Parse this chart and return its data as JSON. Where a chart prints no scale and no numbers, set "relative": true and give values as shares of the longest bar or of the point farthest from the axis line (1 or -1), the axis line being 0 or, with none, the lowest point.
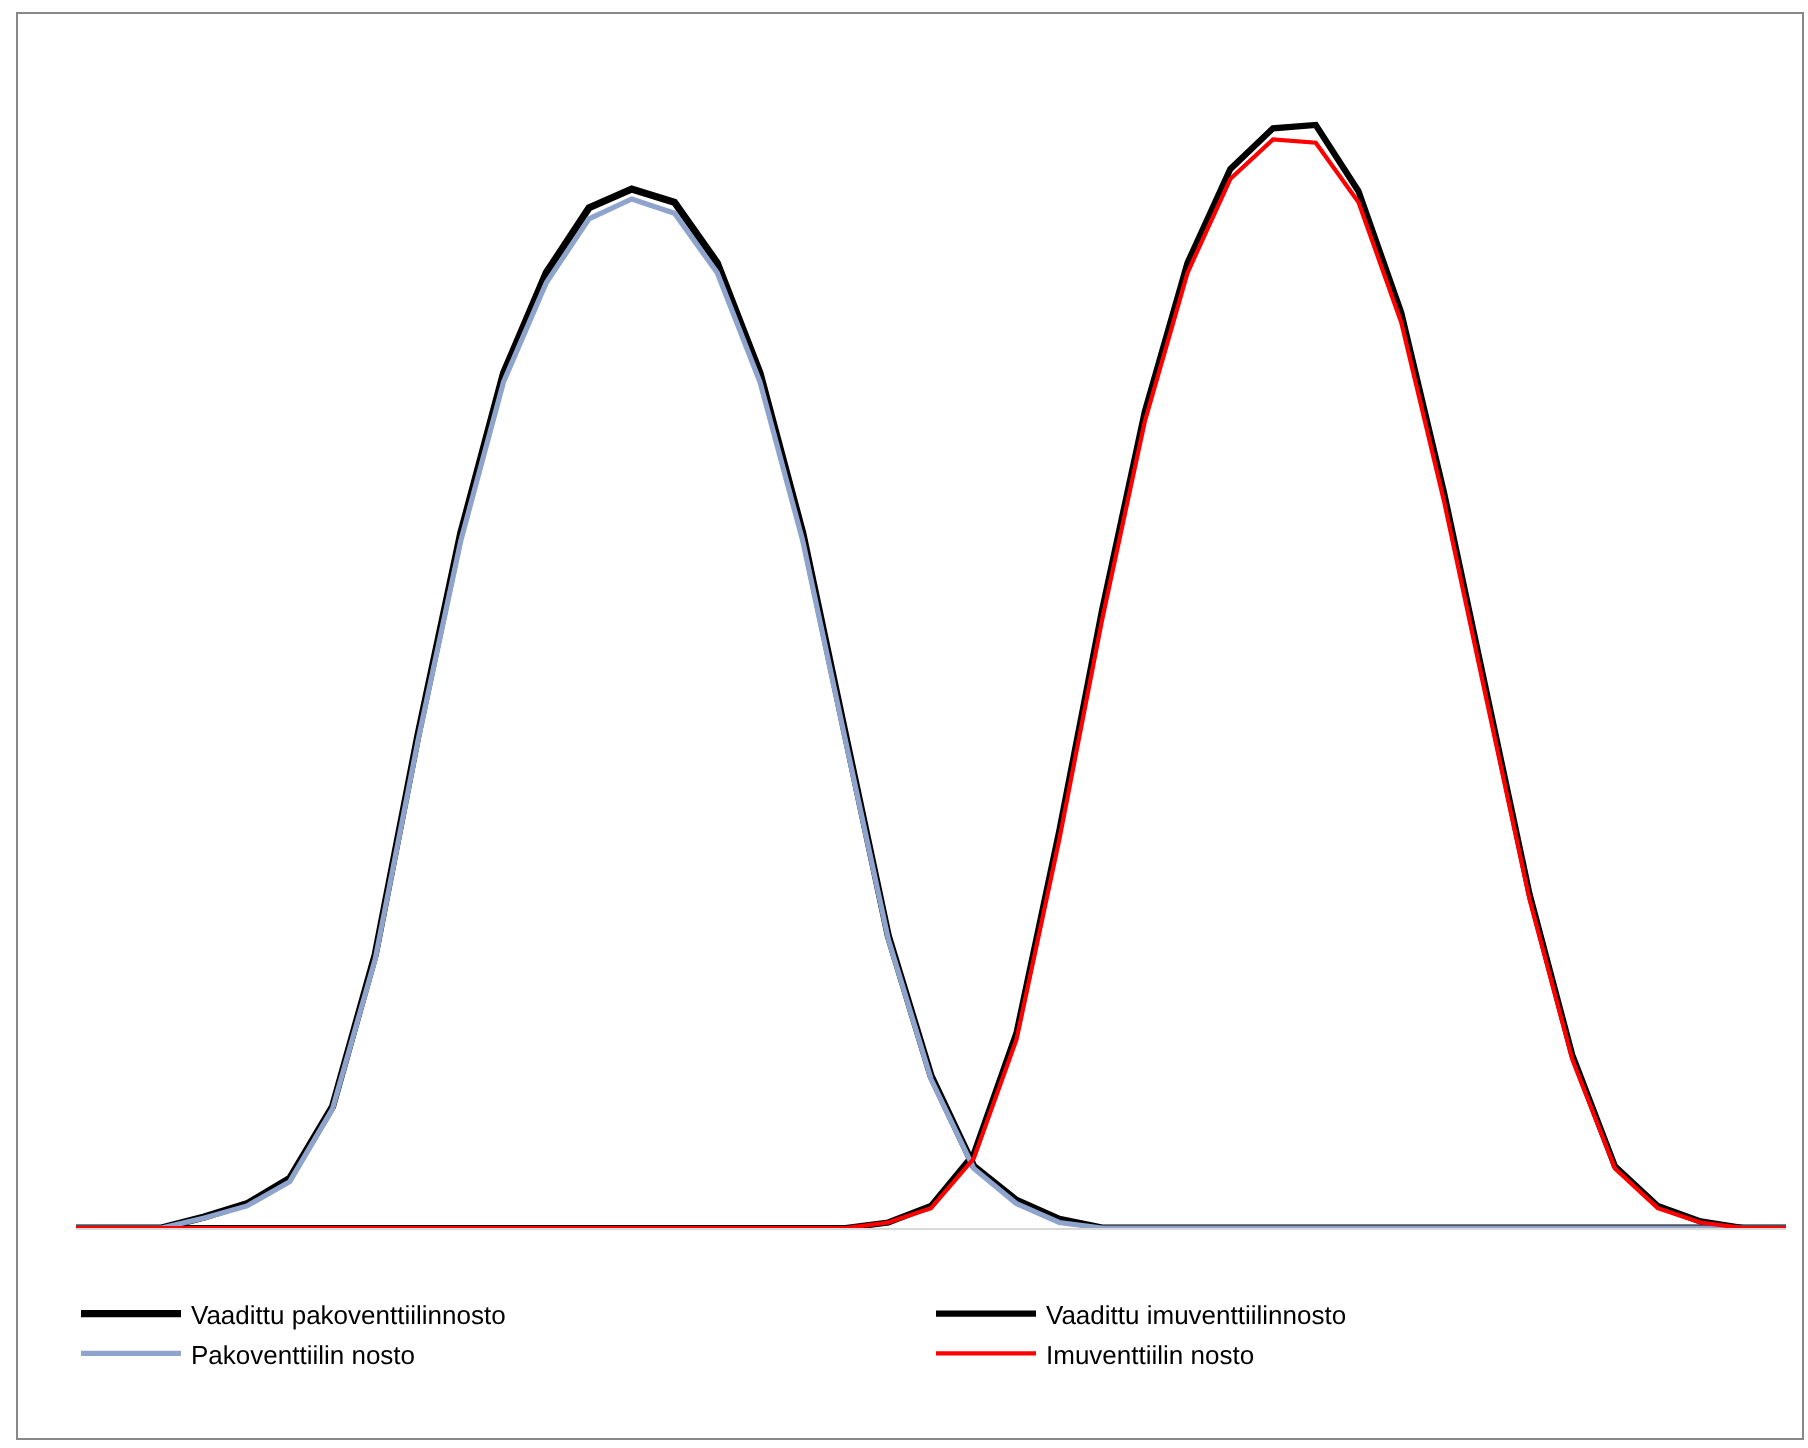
{
  "chart_data": {
    "type": "line",
    "relative": true,
    "legend": "bottom",
    "marker": "none",
    "line_style": "solid",
    "categories": [
      null,
      null,
      null,
      null,
      null,
      null,
      null,
      null,
      null,
      null,
      null,
      null,
      null,
      null,
      null,
      null,
      null,
      null,
      null,
      null,
      null,
      null,
      null,
      null,
      null,
      null,
      null,
      null,
      null,
      null,
      null,
      null,
      null,
      null,
      null,
      null,
      null,
      null,
      null,
      null,
      null
    ],
    "series": [
      {
        "name": "Vaadittu pakoventtiilinnosto",
        "color": "#000000",
        "values": [
          0,
          0,
          0,
          0.01,
          0.022,
          0.045,
          0.11,
          0.248,
          0.447,
          0.63,
          0.775,
          0.866,
          0.925,
          0.942,
          0.93,
          0.875,
          0.775,
          0.63,
          0.447,
          0.265,
          0.138,
          0.056,
          0.025,
          0.008,
          0,
          0,
          0,
          0,
          0,
          0,
          0,
          0,
          0,
          0,
          0,
          0,
          0,
          0,
          0,
          0,
          0
        ]
      },
      {
        "name": "Vaadittu imuventtiilinnosto",
        "color": "#000000",
        "values": [
          0,
          0,
          0,
          0,
          0,
          0,
          0,
          0,
          0,
          0,
          0,
          0,
          0,
          0,
          0,
          0,
          0,
          0,
          0,
          0.005,
          0.02,
          0.067,
          0.177,
          0.36,
          0.56,
          0.74,
          0.875,
          0.96,
          0.997,
          1,
          0.94,
          0.83,
          0.667,
          0.485,
          0.303,
          0.157,
          0.056,
          0.02,
          0.006,
          0,
          0
        ]
      },
      {
        "name": "Pakoventtiilin nosto",
        "color": "#8ea4cc",
        "values": [
          0,
          0,
          0,
          0.009,
          0.02,
          0.042,
          0.108,
          0.244,
          0.442,
          0.623,
          0.767,
          0.857,
          0.915,
          0.933,
          0.92,
          0.866,
          0.767,
          0.623,
          0.442,
          0.262,
          0.135,
          0.054,
          0.022,
          0.005,
          0,
          0,
          0,
          0,
          0,
          0,
          0,
          0,
          0,
          0,
          0,
          0,
          0,
          0,
          0,
          0,
          0
        ]
      },
      {
        "name": "Imuventtiilin nosto",
        "color": "#ff0000",
        "values": [
          0,
          0,
          0,
          0,
          0,
          0,
          0,
          0,
          0,
          0,
          0,
          0,
          0,
          0,
          0,
          0,
          0,
          0,
          0,
          0.005,
          0.018,
          0.063,
          0.171,
          0.352,
          0.551,
          0.731,
          0.866,
          0.951,
          0.987,
          0.984,
          0.93,
          0.821,
          0.659,
          0.478,
          0.298,
          0.153,
          0.054,
          0.018,
          0.005,
          0,
          0
        ]
      }
    ]
  }
}
